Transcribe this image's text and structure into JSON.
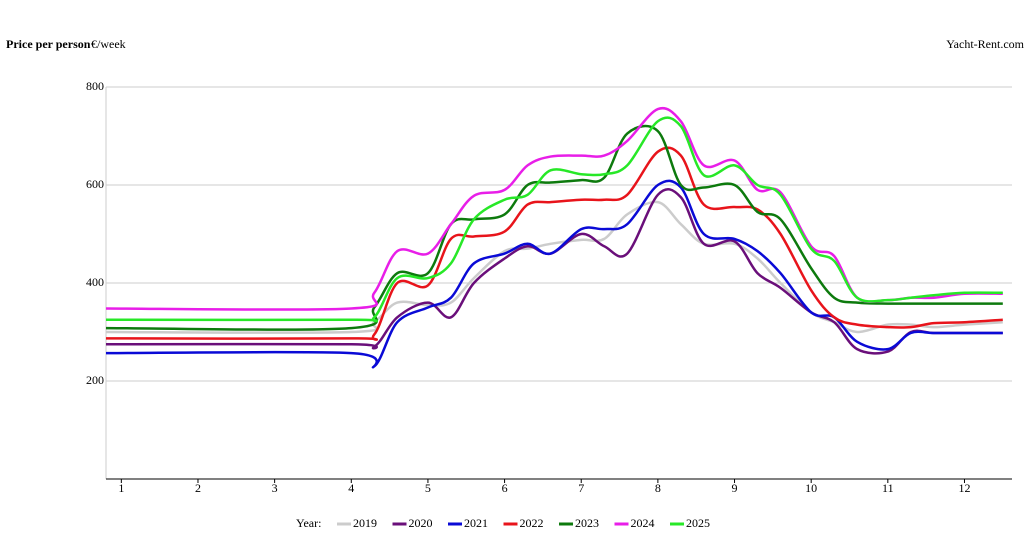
{
  "chart_data": {
    "type": "line",
    "y_label": "Price per person",
    "y_unit": "€/week",
    "source": "Yacht-Rent.com",
    "legend_title": "Year:",
    "xlim": [
      0.8,
      12.62
    ],
    "ylim": [
      0,
      800
    ],
    "xticks": [
      1,
      2,
      3,
      4,
      5,
      6,
      7,
      8,
      9,
      10,
      11,
      12
    ],
    "yticks": [
      200,
      400,
      600,
      800
    ],
    "grid": true,
    "x": [
      0.8,
      4.0,
      4.3,
      4.6,
      5.0,
      5.3,
      5.6,
      6.0,
      6.3,
      6.6,
      7.0,
      7.3,
      7.6,
      8.0,
      8.3,
      8.6,
      9.0,
      9.3,
      9.6,
      10.0,
      10.3,
      10.6,
      11.0,
      11.3,
      11.6,
      12.0,
      12.5
    ],
    "series": [
      {
        "name": "2019",
        "color": "#cccccc",
        "values": [
          300,
          300,
          320,
          360,
          355,
          360,
          410,
          465,
          470,
          480,
          488,
          490,
          540,
          565,
          520,
          480,
          480,
          450,
          400,
          340,
          320,
          300,
          315,
          315,
          310,
          315,
          320
        ]
      },
      {
        "name": "2020",
        "color": "#6a0f7a",
        "values": [
          275,
          275,
          270,
          330,
          360,
          330,
          400,
          450,
          475,
          460,
          500,
          475,
          460,
          580,
          575,
          480,
          485,
          420,
          390,
          340,
          320,
          265,
          260,
          300,
          298,
          298,
          298
        ]
      },
      {
        "name": "2021",
        "color": "#0a0ad6",
        "values": [
          257,
          257,
          230,
          320,
          350,
          370,
          440,
          460,
          480,
          460,
          510,
          510,
          520,
          600,
          595,
          500,
          490,
          465,
          420,
          340,
          330,
          280,
          265,
          298,
          298,
          298,
          298
        ]
      },
      {
        "name": "2022",
        "color": "#e8141b",
        "values": [
          287,
          287,
          295,
          400,
          395,
          490,
          495,
          505,
          560,
          565,
          570,
          570,
          580,
          668,
          660,
          560,
          555,
          550,
          500,
          385,
          330,
          315,
          310,
          310,
          318,
          320,
          325
        ]
      },
      {
        "name": "2023",
        "color": "#0d7a0d",
        "values": [
          308,
          308,
          350,
          420,
          420,
          520,
          530,
          540,
          600,
          605,
          610,
          615,
          705,
          710,
          600,
          595,
          600,
          545,
          530,
          430,
          370,
          360,
          358,
          358,
          358,
          358,
          358
        ]
      },
      {
        "name": "2024",
        "color": "#e81ee8",
        "values": [
          348,
          348,
          380,
          465,
          460,
          520,
          578,
          590,
          640,
          658,
          660,
          660,
          690,
          755,
          730,
          640,
          650,
          590,
          585,
          475,
          455,
          370,
          365,
          370,
          370,
          378,
          378
        ]
      },
      {
        "name": "2025",
        "color": "#27e827",
        "values": [
          325,
          325,
          330,
          410,
          410,
          440,
          530,
          570,
          580,
          630,
          622,
          622,
          640,
          730,
          720,
          620,
          640,
          600,
          580,
          470,
          445,
          370,
          365,
          370,
          375,
          380,
          380
        ]
      }
    ]
  }
}
